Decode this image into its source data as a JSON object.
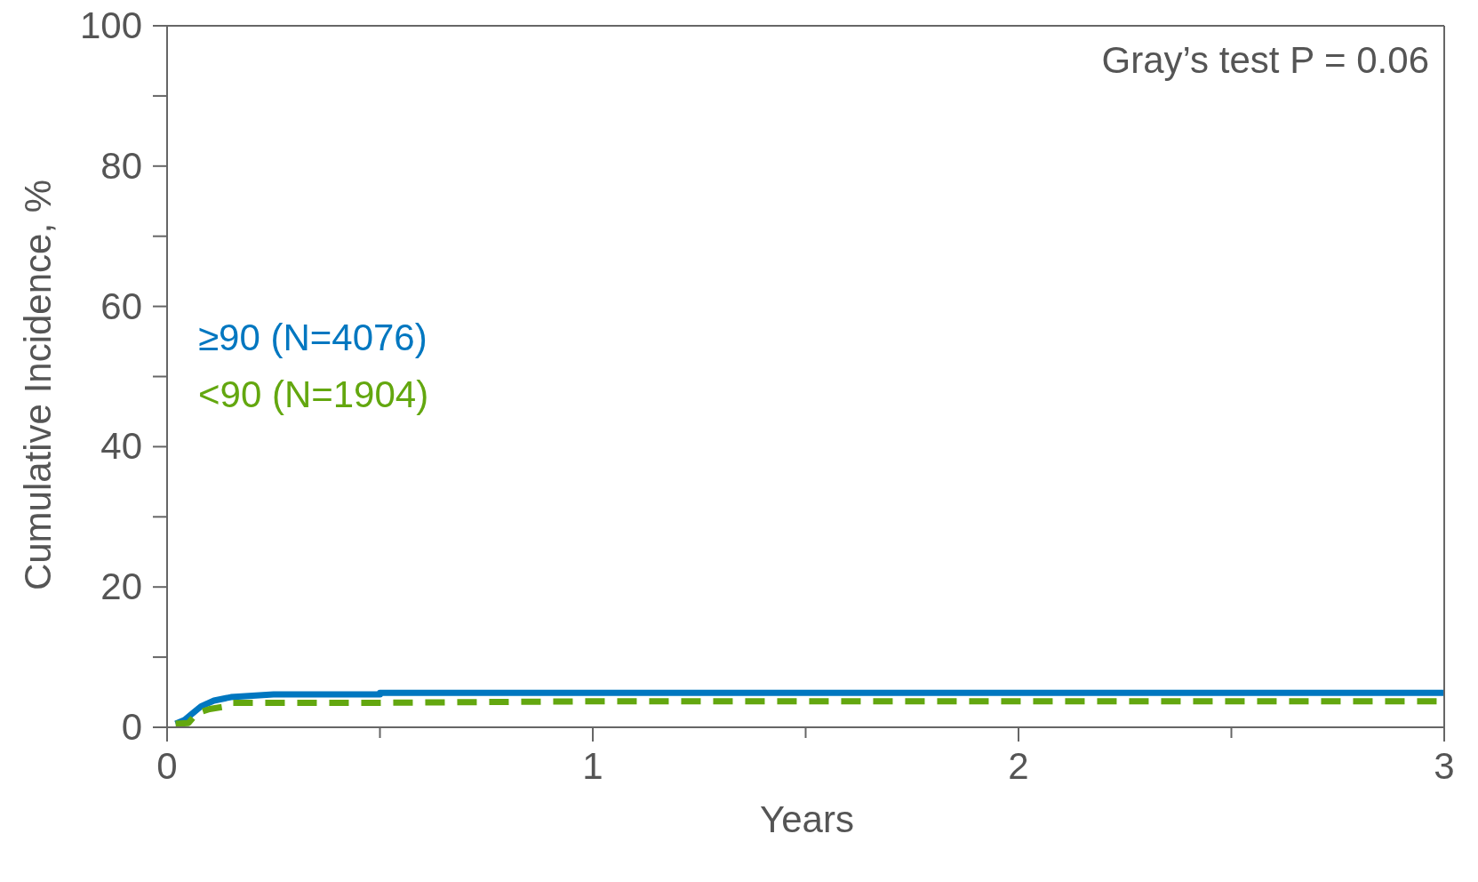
{
  "chart_data": {
    "type": "line",
    "xlabel": "Years",
    "ylabel": "Cumulative Incidence, %",
    "annotations": [
      "Gray’s test P = 0.06"
    ],
    "xlim": [
      0,
      3
    ],
    "xticks": [
      0,
      {
        "value": 0.5,
        "label": null
      },
      1,
      {
        "value": 1.5,
        "label": null
      },
      2,
      {
        "value": 2.5,
        "label": null
      },
      3
    ],
    "ylim": [
      0,
      100
    ],
    "yticks": [
      0,
      {
        "value": 10,
        "label": null
      },
      20,
      {
        "value": 30,
        "label": null
      },
      40,
      {
        "value": 50,
        "label": null
      },
      60,
      {
        "value": 70,
        "label": null
      },
      80,
      {
        "value": 90,
        "label": null
      },
      100
    ],
    "grid": false,
    "legend": "left",
    "marker": "none",
    "series": [
      {
        "name": "≥90 (N=4076)",
        "color": "#0077c0",
        "line_style": "solid",
        "x": [
          0.02,
          0.04,
          0.06,
          0.08,
          0.11,
          0.15,
          0.2,
          0.25,
          0.5,
          0.5,
          3
        ],
        "values": [
          0.5,
          1,
          2,
          3,
          3.8,
          4.3,
          4.5,
          4.7,
          4.7,
          4.9,
          4.9
        ]
      },
      {
        "name": "<90 (N=1904)",
        "color": "#63a70f",
        "line_style": "dashed",
        "x": [
          0.02,
          0.05,
          0.07,
          0.1,
          0.13,
          0.15,
          0.5,
          1,
          3
        ],
        "values": [
          0.5,
          0.6,
          2,
          2.6,
          2.9,
          3.5,
          3.5,
          3.7,
          3.7
        ]
      }
    ]
  }
}
